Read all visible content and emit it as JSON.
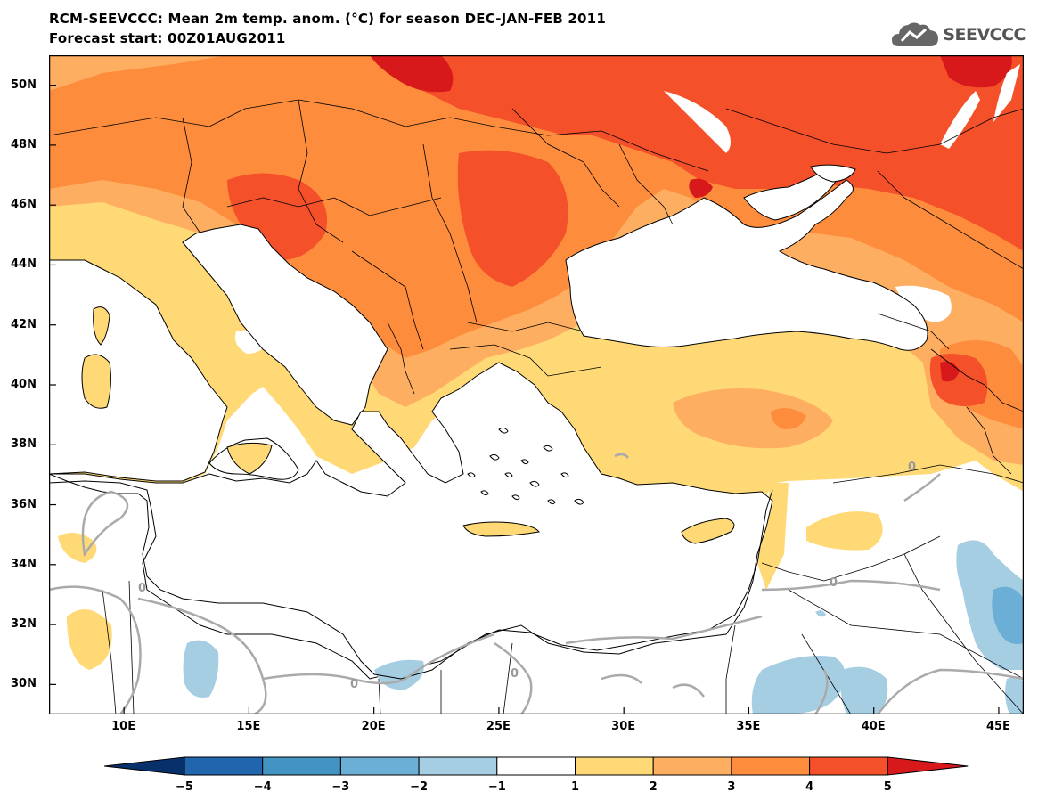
{
  "header": {
    "title": "RCM-SEEVCCC: Mean 2m temp. anom. (°C) for season DEC-JAN-FEB 2011",
    "subtitle": "Forecast start: 00Z01AUG2011"
  },
  "logo": {
    "text": "SEEVCCC",
    "icon": "cloud-icon",
    "color": "#555555"
  },
  "map": {
    "lon_range": [
      7,
      46
    ],
    "lat_range": [
      29,
      51
    ],
    "lon_ticks": [
      "10E",
      "15E",
      "20E",
      "25E",
      "30E",
      "35E",
      "40E",
      "45E"
    ],
    "lat_ticks": [
      "50N",
      "48N",
      "46N",
      "44N",
      "42N",
      "40N",
      "38N",
      "36N",
      "34N",
      "32N",
      "30N"
    ],
    "contour_labels": [
      "0",
      "0",
      "0",
      "0",
      "0"
    ]
  },
  "colorbar": {
    "ticks": [
      "−5",
      "−4",
      "−3",
      "−2",
      "−1",
      "1",
      "2",
      "3",
      "4",
      "5"
    ],
    "colors": [
      "#08306b",
      "#2166ac",
      "#4393c3",
      "#6baed6",
      "#a6cee3",
      "#ffffff",
      "#fed976",
      "#fdae61",
      "#fd8d3c",
      "#f4502a",
      "#d7191c"
    ]
  }
}
